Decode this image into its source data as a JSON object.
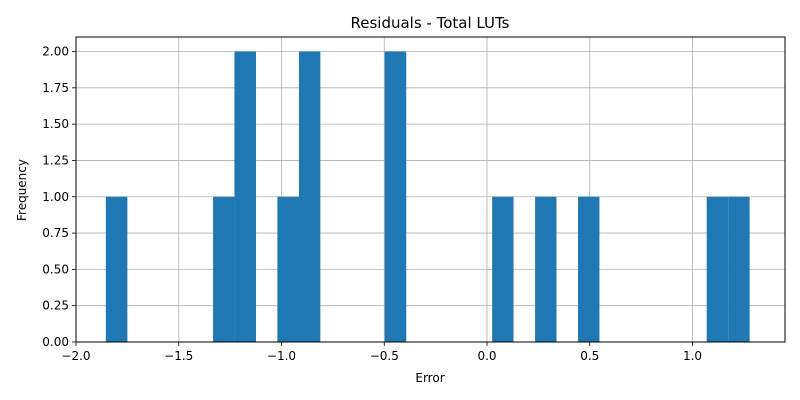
{
  "chart_data": {
    "type": "bar",
    "subtype": "histogram",
    "title": "Residuals - Total LUTs",
    "xlabel": "Error",
    "ylabel": "Frequency",
    "xlim": [
      -2.0,
      1.45
    ],
    "ylim": [
      0,
      2.1
    ],
    "grid": true,
    "bar_color": "#1f77b4",
    "x_ticks": [
      "−2.0",
      "−1.5",
      "−1.0",
      "−0.5",
      "0.0",
      "0.5",
      "1.0"
    ],
    "x_tick_values": [
      -2.0,
      -1.5,
      -1.0,
      -0.5,
      0.0,
      0.5,
      1.0
    ],
    "y_ticks": [
      "0.00",
      "0.25",
      "0.50",
      "0.75",
      "1.00",
      "1.25",
      "1.50",
      "1.75",
      "2.00"
    ],
    "y_tick_values": [
      0,
      0.25,
      0.5,
      0.75,
      1.0,
      1.25,
      1.5,
      1.75,
      2.0
    ],
    "bins": [
      {
        "x0": -1.855,
        "x1": -1.75,
        "count": 1
      },
      {
        "x0": -1.333,
        "x1": -1.229,
        "count": 1
      },
      {
        "x0": -1.229,
        "x1": -1.124,
        "count": 2
      },
      {
        "x0": -1.02,
        "x1": -0.915,
        "count": 1
      },
      {
        "x0": -0.915,
        "x1": -0.811,
        "count": 2
      },
      {
        "x0": -0.498,
        "x1": -0.393,
        "count": 2
      },
      {
        "x0": 0.025,
        "x1": 0.129,
        "count": 1
      },
      {
        "x0": 0.234,
        "x1": 0.338,
        "count": 1
      },
      {
        "x0": 0.443,
        "x1": 0.547,
        "count": 1
      },
      {
        "x0": 1.069,
        "x1": 1.174,
        "count": 1
      },
      {
        "x0": 1.174,
        "x1": 1.278,
        "count": 1
      }
    ]
  }
}
